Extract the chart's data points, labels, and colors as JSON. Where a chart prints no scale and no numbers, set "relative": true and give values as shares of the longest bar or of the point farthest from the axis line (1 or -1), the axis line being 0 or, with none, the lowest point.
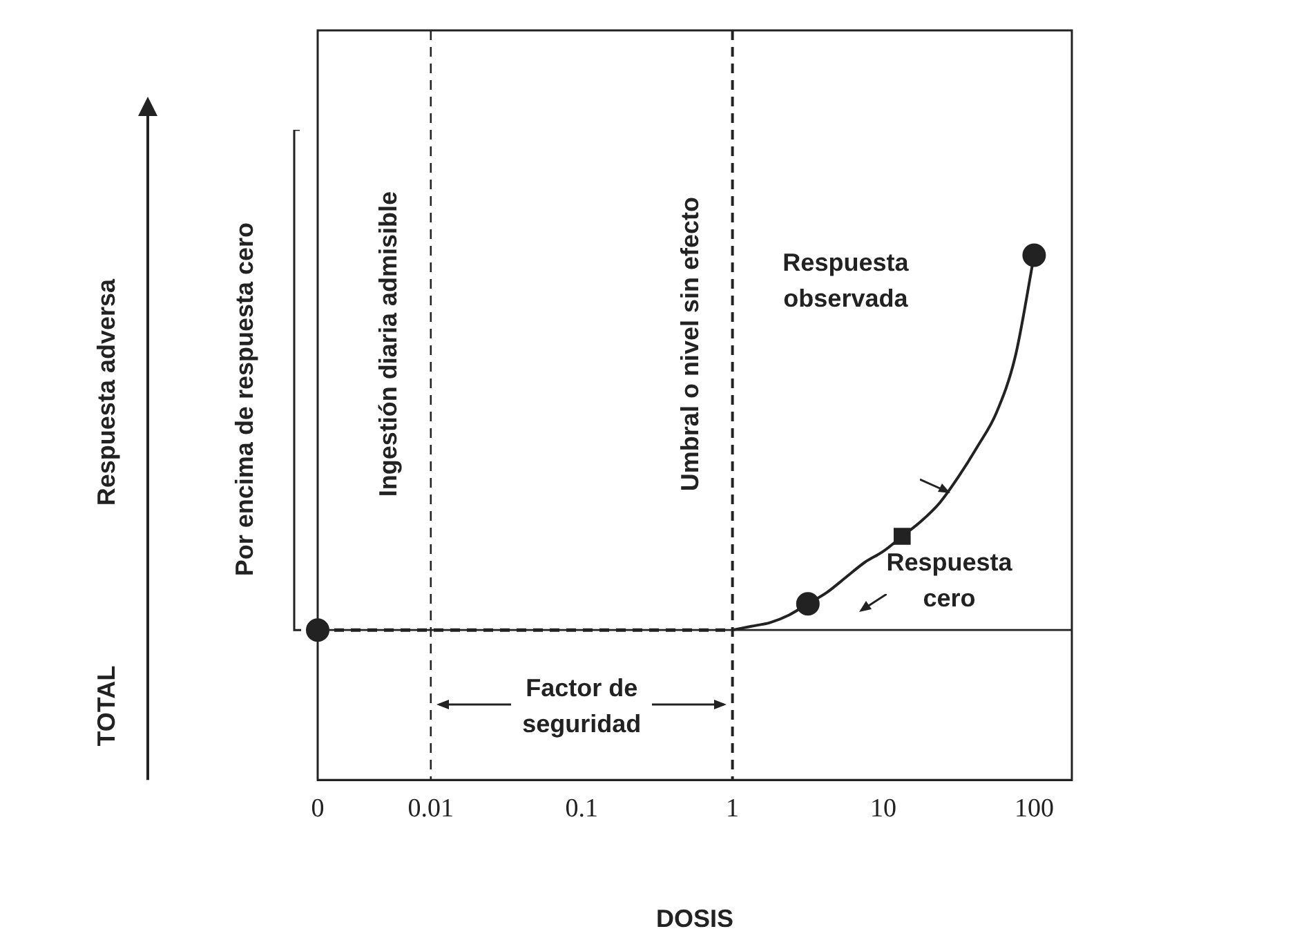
{
  "chart_data": {
    "type": "line",
    "relative": true,
    "xlabel": "DOSIS",
    "categories": [
      "0",
      null,
      null,
      null,
      null,
      null,
      "0.01",
      null,
      null,
      null,
      null,
      null,
      null,
      null,
      "0.1",
      null,
      null,
      null,
      null,
      null,
      null,
      null,
      "1",
      null,
      null,
      null,
      null,
      null,
      null,
      null,
      "10",
      null,
      null,
      null,
      null,
      null,
      null,
      null,
      "100",
      null,
      null
    ],
    "series": [
      {
        "type": "line",
        "color": "#222222",
        "line_style": "solid",
        "marker": "none",
        "values": [
          null,
          null,
          null,
          null,
          null,
          null,
          null,
          null,
          null,
          null,
          null,
          null,
          null,
          null,
          null,
          null,
          null,
          null,
          null,
          null,
          null,
          null,
          0,
          0.01,
          0.02,
          0.04,
          0.07,
          0.1,
          0.14,
          0.18,
          0.21,
          0.25,
          0.29,
          0.34,
          0.41,
          0.49,
          0.58,
          0.73,
          1,
          null,
          null
        ]
      },
      {
        "type": "line",
        "color": "#222222",
        "line_style": "dashed",
        "marker": "none",
        "values": [
          0,
          0,
          0,
          0,
          0,
          0,
          0,
          0,
          0,
          0,
          0,
          0,
          0,
          0,
          0,
          0,
          0,
          0,
          0,
          0,
          0,
          0,
          0,
          null,
          null,
          null,
          null,
          null,
          null,
          null,
          null,
          null,
          null,
          null,
          null,
          null,
          null,
          null,
          null,
          null,
          null
        ]
      },
      {
        "type": "scatter",
        "color": "#222222",
        "marker": "circle",
        "values": [
          0,
          null,
          null,
          null,
          null,
          null,
          null,
          null,
          null,
          null,
          null,
          null,
          null,
          null,
          null,
          null,
          null,
          null,
          null,
          null,
          null,
          null,
          null,
          null,
          null,
          null,
          0.07,
          null,
          null,
          null,
          null,
          null,
          null,
          null,
          null,
          null,
          null,
          null,
          1,
          null,
          null
        ]
      },
      {
        "type": "scatter",
        "color": "#222222",
        "marker": "square",
        "values": [
          null,
          null,
          null,
          null,
          null,
          null,
          null,
          null,
          null,
          null,
          null,
          null,
          null,
          null,
          null,
          null,
          null,
          null,
          null,
          null,
          null,
          null,
          null,
          null,
          null,
          null,
          null,
          null,
          null,
          null,
          null,
          0.25,
          null,
          null,
          null,
          null,
          null,
          null,
          null,
          null,
          null
        ]
      }
    ],
    "ref_lines": [
      {
        "axis": "y",
        "value": 0,
        "label": "Respuesta cero",
        "color": "#222222",
        "line_style": "solid"
      },
      {
        "axis": "x",
        "value": "0.01",
        "label": "Ingestión diaria admisible",
        "color": "#222222",
        "line_style": "dashed"
      },
      {
        "axis": "x",
        "value": "1",
        "label": "Umbral o nivel sin efecto",
        "color": "#222222",
        "line_style": "dashed"
      }
    ],
    "annotations": [
      "Respuesta observada",
      "Factor de seguridad",
      "Por encima de respuesta cero",
      "TOTAL",
      "Respuesta adversa"
    ],
    "grid": false,
    "legend": false
  }
}
